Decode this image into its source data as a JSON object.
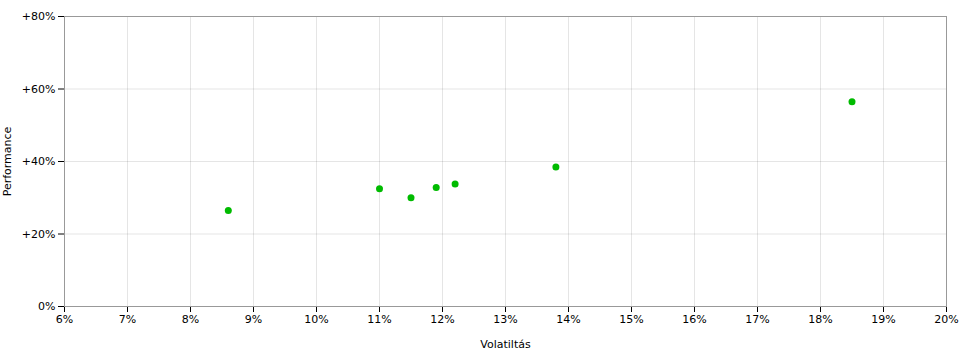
{
  "chart_data": {
    "type": "scatter",
    "xlabel": "Volatiltás",
    "ylabel": "Performance",
    "x": [
      0.086,
      0.11,
      0.115,
      0.119,
      0.122,
      0.138,
      0.185
    ],
    "values": [
      0.265,
      0.325,
      0.3,
      0.328,
      0.338,
      0.385,
      0.565
    ],
    "color": "#00bb00",
    "xlim": [
      0.06,
      0.2
    ],
    "ylim": [
      0.0,
      0.8
    ],
    "xticks": [
      {
        "value": 0.06,
        "label": "6%"
      },
      {
        "value": 0.07,
        "label": "7%"
      },
      {
        "value": 0.08,
        "label": "8%"
      },
      {
        "value": 0.09,
        "label": "9%"
      },
      {
        "value": 0.1,
        "label": "10%"
      },
      {
        "value": 0.11,
        "label": "11%"
      },
      {
        "value": 0.12,
        "label": "12%"
      },
      {
        "value": 0.13,
        "label": "13%"
      },
      {
        "value": 0.14,
        "label": "14%"
      },
      {
        "value": 0.15,
        "label": "15%"
      },
      {
        "value": 0.16,
        "label": "16%"
      },
      {
        "value": 0.17,
        "label": "17%"
      },
      {
        "value": 0.18,
        "label": "18%"
      },
      {
        "value": 0.19,
        "label": "19%"
      },
      {
        "value": 0.2,
        "label": "20%"
      }
    ],
    "yticks": [
      {
        "value": 0.0,
        "label": "0%"
      },
      {
        "value": 0.2,
        "label": "+20%"
      },
      {
        "value": 0.4,
        "label": "+40%"
      },
      {
        "value": 0.6,
        "label": "+60%"
      },
      {
        "value": 0.8,
        "label": "+80%"
      }
    ],
    "grid": true
  }
}
